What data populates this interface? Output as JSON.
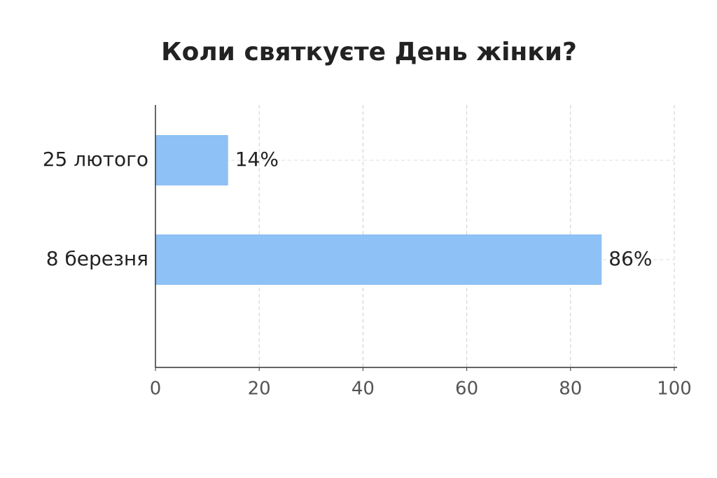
{
  "chart_data": {
    "type": "barh",
    "title": "Коли святкуєте День жінки?",
    "categories": [
      "25 лютого",
      "8 березня"
    ],
    "values": [
      14,
      86
    ],
    "value_labels": [
      "14%",
      "86%"
    ],
    "color": "#8ec1f5",
    "xlim": [
      0,
      100
    ],
    "xticks": [
      0,
      20,
      40,
      60,
      80,
      100
    ],
    "grid": true
  }
}
